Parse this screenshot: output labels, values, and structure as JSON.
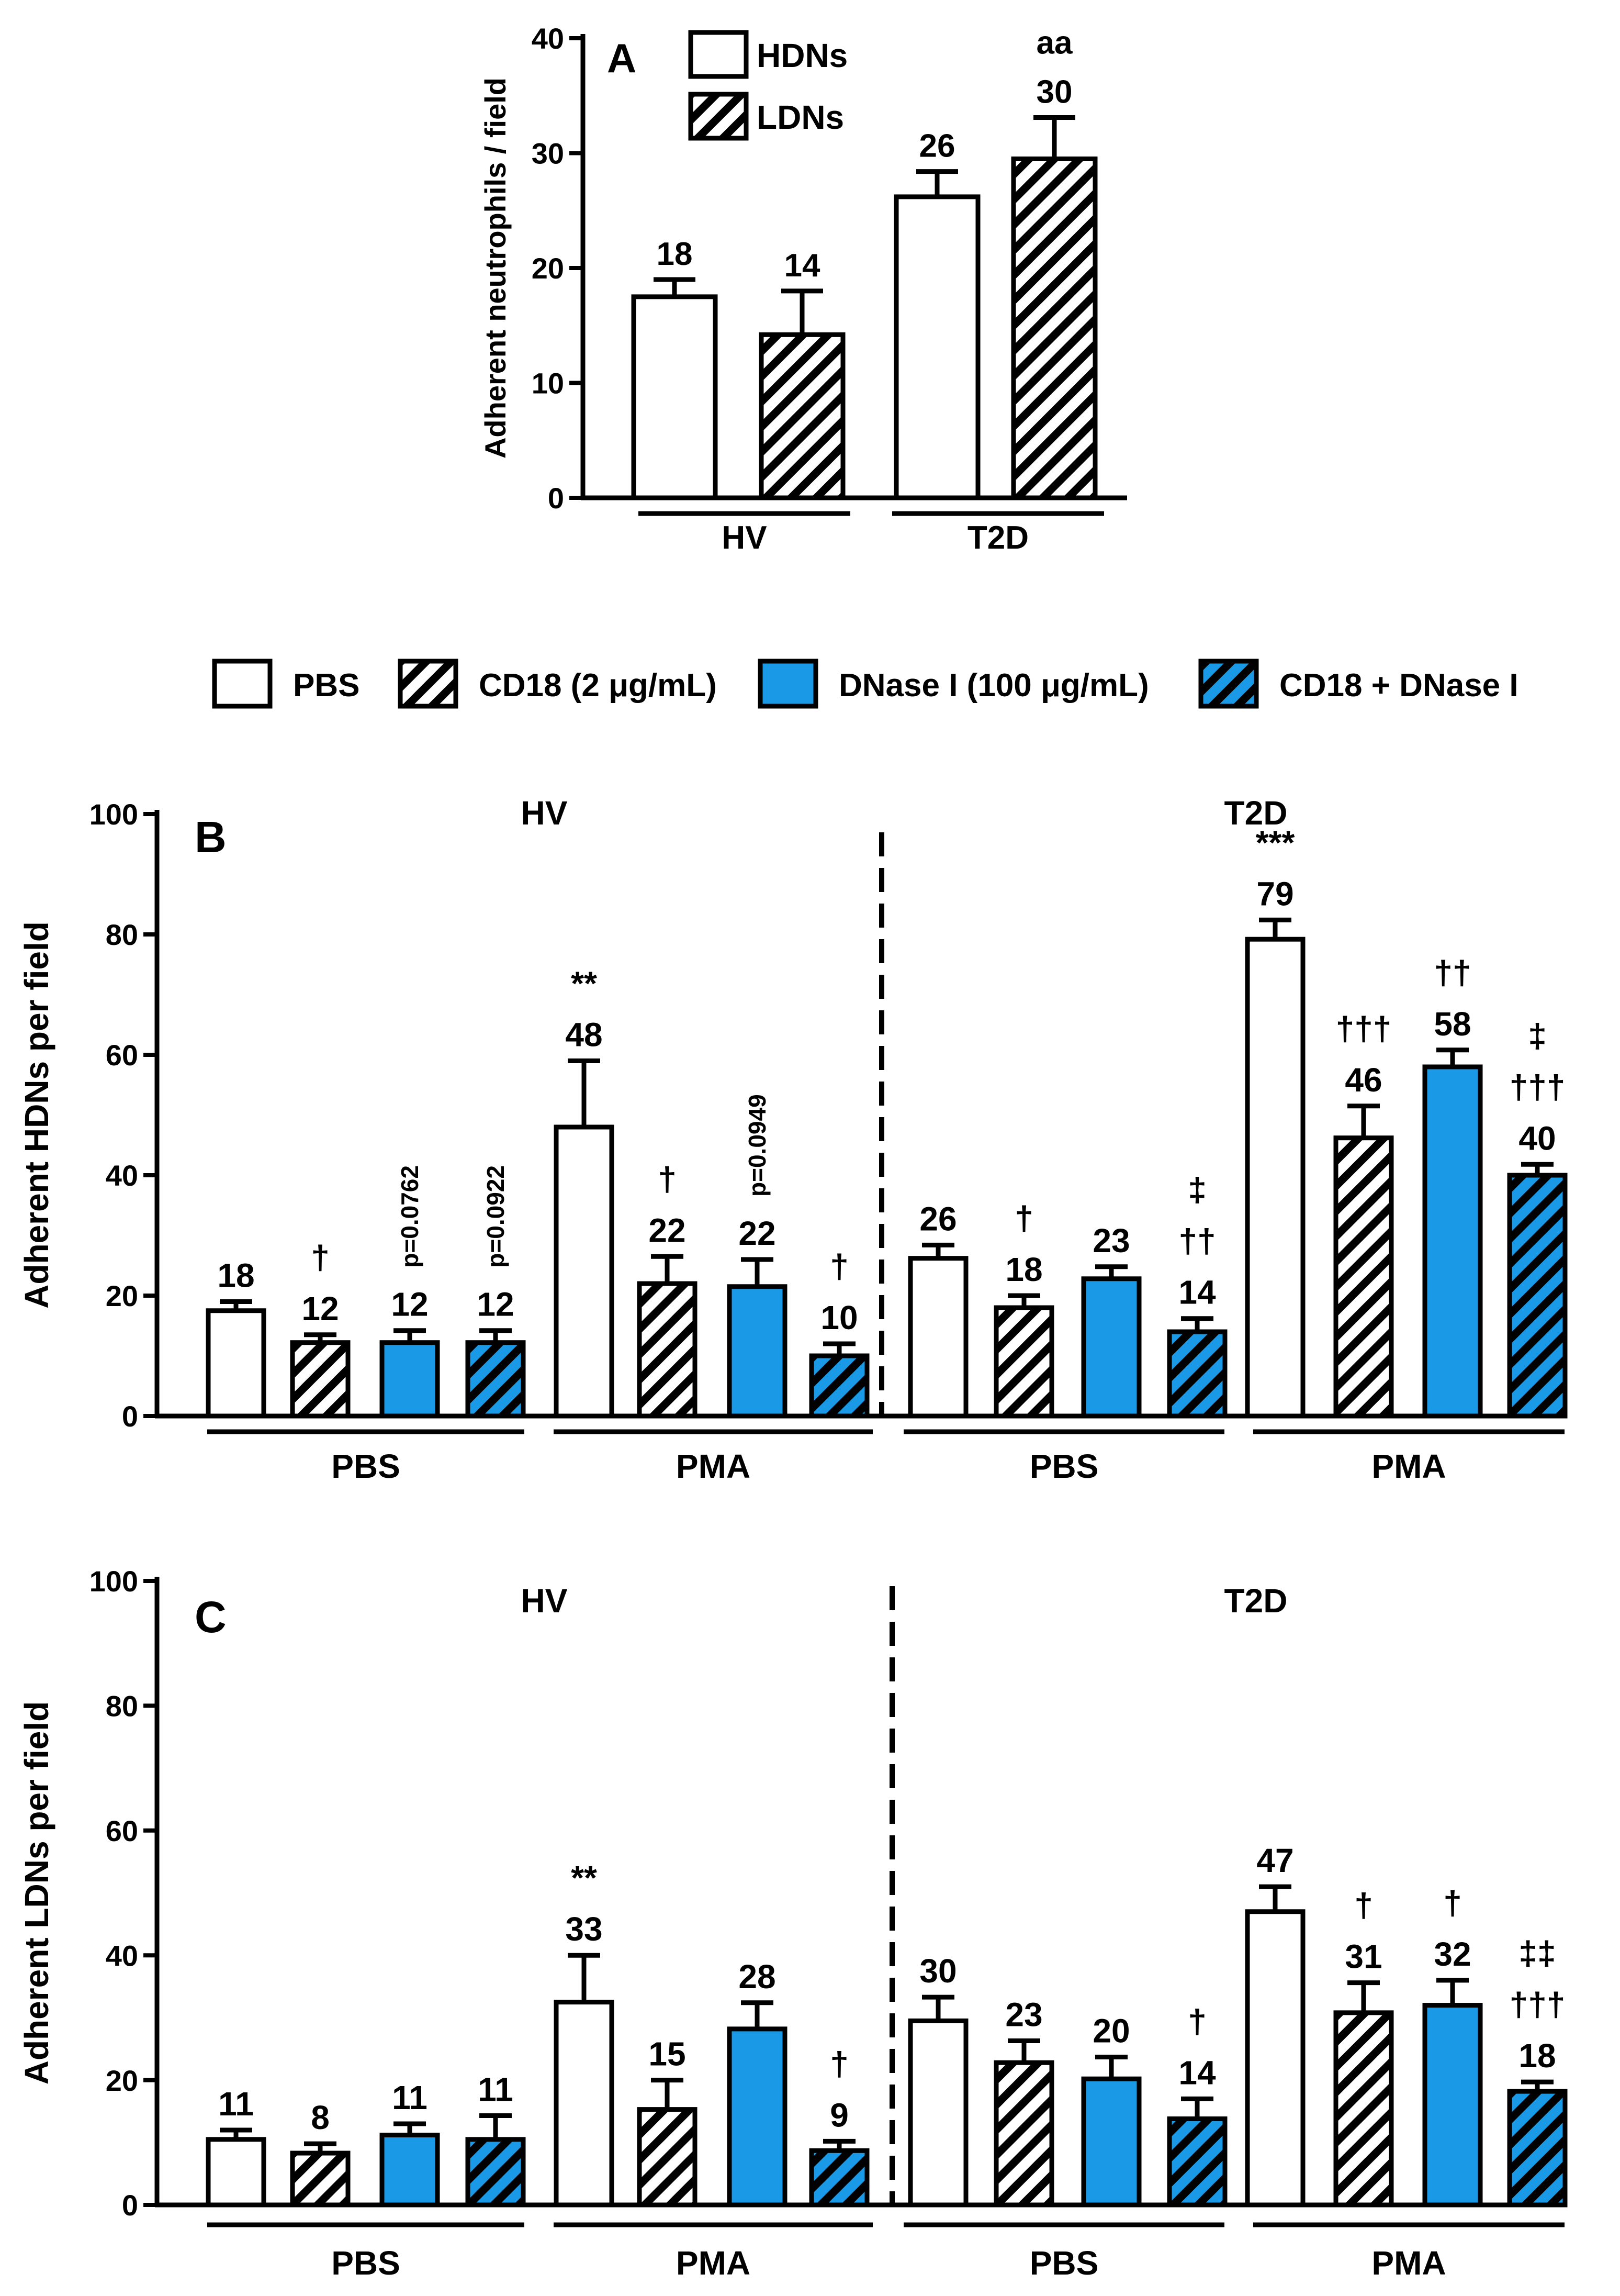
{
  "colors": {
    "blue": "#1a99e6",
    "white": "#ffffff",
    "black": "#000000"
  },
  "legend_top": {
    "items": [
      {
        "label": "PBS",
        "fill": "white"
      },
      {
        "label": "CD18 (2 μg/mL)",
        "fill": "hatch"
      },
      {
        "label": "DNase I (100 μg/mL)",
        "fill": "blue"
      },
      {
        "label": "CD18 + DNase I",
        "fill": "blue-hatch"
      }
    ]
  },
  "chart_data": [
    {
      "panel": "A",
      "type": "bar",
      "ylabel": "Adherent neutrophils / field",
      "ylim": [
        0,
        40
      ],
      "yticks": [
        0,
        10,
        20,
        30,
        40
      ],
      "legend": [
        {
          "label": "HDNs",
          "fill": "white"
        },
        {
          "label": "LDNs",
          "fill": "hatch"
        }
      ],
      "groups": [
        "HV",
        "T2D"
      ],
      "bars": [
        {
          "group": "HV",
          "series": "HDNs",
          "fill": "white",
          "value": 17.5,
          "err": 1.5,
          "label": "18",
          "marks": []
        },
        {
          "group": "HV",
          "series": "LDNs",
          "fill": "hatch",
          "value": 14.2,
          "err": 3.8,
          "label": "14",
          "marks": []
        },
        {
          "group": "T2D",
          "series": "HDNs",
          "fill": "white",
          "value": 26.2,
          "err": 2.2,
          "label": "26",
          "marks": []
        },
        {
          "group": "T2D",
          "series": "LDNs",
          "fill": "hatch",
          "value": 29.5,
          "err": 3.6,
          "label": "30",
          "marks": [
            "aa"
          ]
        }
      ]
    },
    {
      "panel": "B",
      "type": "bar",
      "ylabel": "Adherent HDNs per field",
      "ylim": [
        0,
        100
      ],
      "yticks": [
        0,
        20,
        40,
        60,
        80,
        100
      ],
      "cohorts": [
        "HV",
        "T2D"
      ],
      "groups": [
        {
          "label": "PBS",
          "cohort": "HV"
        },
        {
          "label": "PMA",
          "cohort": "HV"
        },
        {
          "label": "PBS",
          "cohort": "T2D"
        },
        {
          "label": "PMA",
          "cohort": "T2D"
        }
      ],
      "bars": [
        {
          "fill": "white",
          "value": 17.5,
          "err": 1.5,
          "label": "18",
          "marks": []
        },
        {
          "fill": "hatch",
          "value": 12.2,
          "err": 1.3,
          "label": "12",
          "marks": [
            "†"
          ]
        },
        {
          "fill": "blue",
          "value": 12.2,
          "err": 2.0,
          "label": "12",
          "marks": [],
          "pnote": "p=0.0762"
        },
        {
          "fill": "blue-hatch",
          "value": 12.2,
          "err": 2.0,
          "label": "12",
          "marks": [],
          "pnote": "p=0.0922"
        },
        {
          "fill": "white",
          "value": 48.0,
          "err": 11.0,
          "label": "48",
          "marks": [
            "**"
          ]
        },
        {
          "fill": "hatch",
          "value": 22.0,
          "err": 4.5,
          "label": "22",
          "marks": [
            "†"
          ]
        },
        {
          "fill": "blue",
          "value": 21.5,
          "err": 4.5,
          "label": "22",
          "marks": [],
          "pnote": "p=0.0949"
        },
        {
          "fill": "blue-hatch",
          "value": 10.0,
          "err": 2.0,
          "label": "10",
          "marks": [
            "†"
          ]
        },
        {
          "fill": "white",
          "value": 26.2,
          "err": 2.2,
          "label": "26",
          "marks": []
        },
        {
          "fill": "hatch",
          "value": 18.0,
          "err": 2.0,
          "label": "18",
          "marks": [
            "†"
          ]
        },
        {
          "fill": "blue",
          "value": 22.8,
          "err": 2.0,
          "label": "23",
          "marks": []
        },
        {
          "fill": "blue-hatch",
          "value": 14.0,
          "err": 2.2,
          "label": "14",
          "marks": [
            "‡",
            "††"
          ]
        },
        {
          "fill": "white",
          "value": 79.2,
          "err": 3.2,
          "label": "79",
          "marks": [
            "***"
          ]
        },
        {
          "fill": "hatch",
          "value": 46.2,
          "err": 5.3,
          "label": "46",
          "marks": [
            "†††"
          ]
        },
        {
          "fill": "blue",
          "value": 58.0,
          "err": 2.8,
          "label": "58",
          "marks": [
            "††"
          ]
        },
        {
          "fill": "blue-hatch",
          "value": 40.0,
          "err": 1.8,
          "label": "40",
          "marks": [
            "‡",
            "†††"
          ]
        }
      ]
    },
    {
      "panel": "C",
      "type": "bar",
      "ylabel": "Adherent LDNs per field",
      "ylim": [
        0,
        100
      ],
      "yticks": [
        0,
        20,
        40,
        60,
        80,
        100
      ],
      "cohorts": [
        "HV",
        "T2D"
      ],
      "groups": [
        {
          "label": "PBS",
          "cohort": "HV"
        },
        {
          "label": "PMA",
          "cohort": "HV"
        },
        {
          "label": "PBS",
          "cohort": "T2D"
        },
        {
          "label": "PMA",
          "cohort": "T2D"
        }
      ],
      "bars": [
        {
          "fill": "white",
          "value": 10.5,
          "err": 1.5,
          "label": "11",
          "marks": []
        },
        {
          "fill": "hatch",
          "value": 8.3,
          "err": 1.5,
          "label": "8",
          "marks": []
        },
        {
          "fill": "blue",
          "value": 11.2,
          "err": 1.8,
          "label": "11",
          "marks": []
        },
        {
          "fill": "blue-hatch",
          "value": 10.5,
          "err": 3.8,
          "label": "11",
          "marks": []
        },
        {
          "fill": "white",
          "value": 32.5,
          "err": 7.5,
          "label": "33",
          "marks": [
            "**"
          ]
        },
        {
          "fill": "hatch",
          "value": 15.3,
          "err": 4.7,
          "label": "15",
          "marks": []
        },
        {
          "fill": "blue",
          "value": 28.2,
          "err": 4.2,
          "label": "28",
          "marks": []
        },
        {
          "fill": "blue-hatch",
          "value": 8.7,
          "err": 1.5,
          "label": "9",
          "marks": [
            "†"
          ]
        },
        {
          "fill": "white",
          "value": 29.5,
          "err": 3.8,
          "label": "30",
          "marks": []
        },
        {
          "fill": "hatch",
          "value": 22.8,
          "err": 3.5,
          "label": "23",
          "marks": []
        },
        {
          "fill": "blue",
          "value": 20.2,
          "err": 3.5,
          "label": "20",
          "marks": []
        },
        {
          "fill": "blue-hatch",
          "value": 13.8,
          "err": 3.2,
          "label": "14",
          "marks": [
            "†"
          ]
        },
        {
          "fill": "white",
          "value": 47.0,
          "err": 4.0,
          "label": "47",
          "marks": []
        },
        {
          "fill": "hatch",
          "value": 30.8,
          "err": 4.8,
          "label": "31",
          "marks": [
            "†"
          ]
        },
        {
          "fill": "blue",
          "value": 32.0,
          "err": 4.0,
          "label": "32",
          "marks": [
            "†"
          ]
        },
        {
          "fill": "blue-hatch",
          "value": 18.2,
          "err": 1.5,
          "label": "18",
          "marks": [
            "‡‡",
            "†††"
          ]
        }
      ]
    }
  ]
}
